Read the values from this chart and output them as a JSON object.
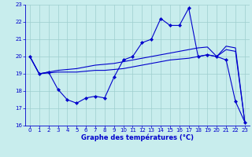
{
  "xlabel": "Graphe des températures (°C)",
  "xlim": [
    -0.5,
    23.5
  ],
  "ylim": [
    16,
    23
  ],
  "yticks": [
    16,
    17,
    18,
    19,
    20,
    21,
    22,
    23
  ],
  "xticks": [
    0,
    1,
    2,
    3,
    4,
    5,
    6,
    7,
    8,
    9,
    10,
    11,
    12,
    13,
    14,
    15,
    16,
    17,
    18,
    19,
    20,
    21,
    22,
    23
  ],
  "bg_color": "#c8eded",
  "line_color": "#0000cc",
  "grid_color": "#9ecece",
  "series_main": {
    "x": [
      0,
      1,
      2,
      3,
      4,
      5,
      6,
      7,
      8,
      9,
      10,
      11,
      12,
      13,
      14,
      15,
      16,
      17,
      18,
      19,
      20,
      21,
      22,
      23
    ],
    "y": [
      20.0,
      19.0,
      19.1,
      18.1,
      17.5,
      17.3,
      17.6,
      17.7,
      17.6,
      18.8,
      19.8,
      20.0,
      20.8,
      21.0,
      22.2,
      21.8,
      21.8,
      22.8,
      20.0,
      20.1,
      20.0,
      19.8,
      17.4,
      16.2
    ]
  },
  "series_upper": {
    "x": [
      0,
      1,
      2,
      3,
      4,
      5,
      6,
      7,
      8,
      9,
      10,
      11,
      12,
      13,
      14,
      15,
      16,
      17,
      18,
      19,
      20,
      21,
      22,
      23
    ],
    "y": [
      20.0,
      19.0,
      19.1,
      19.2,
      19.25,
      19.3,
      19.4,
      19.5,
      19.55,
      19.6,
      19.7,
      19.8,
      19.9,
      20.0,
      20.1,
      20.2,
      20.3,
      20.4,
      20.5,
      20.55,
      20.0,
      20.6,
      20.5,
      16.2
    ]
  },
  "series_lower": {
    "x": [
      0,
      1,
      2,
      3,
      4,
      5,
      6,
      7,
      8,
      9,
      10,
      11,
      12,
      13,
      14,
      15,
      16,
      17,
      18,
      19,
      20,
      21,
      22,
      23
    ],
    "y": [
      20.0,
      19.0,
      19.05,
      19.1,
      19.1,
      19.1,
      19.15,
      19.2,
      19.2,
      19.25,
      19.3,
      19.4,
      19.5,
      19.6,
      19.7,
      19.8,
      19.85,
      19.9,
      20.0,
      20.1,
      20.0,
      20.4,
      20.3,
      16.2
    ]
  },
  "figsize": [
    3.2,
    2.0
  ],
  "dpi": 100
}
